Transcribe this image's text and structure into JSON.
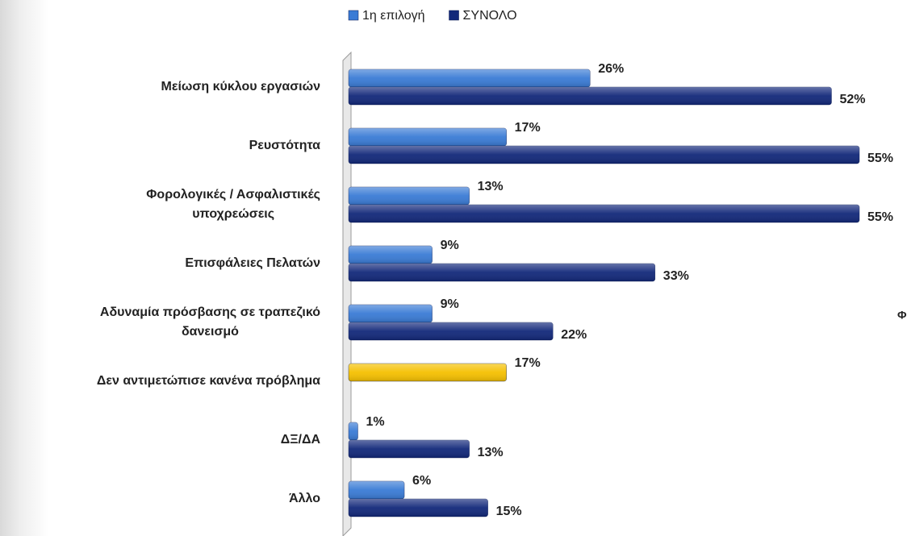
{
  "chart_data": {
    "type": "bar",
    "orientation": "horizontal",
    "categories": [
      "Μείωση κύκλου εργασιών",
      "Ρευστότητα",
      "Φορολογικές / Ασφαλιστικές\nυποχρεώσεις",
      "Επισφάλειες Πελατών",
      "Αδυναμία πρόσβασης σε τραπεζικό\nδανεισμό",
      "Δεν αντιμετώπισε κανένα πρόβλημα",
      "ΔΞ/ΔΑ",
      "Άλλο"
    ],
    "series": [
      {
        "name": "1η επιλογή",
        "color": "#3a7bd5",
        "colors": [
          "#3a7bd5",
          "#3a7bd5",
          "#3a7bd5",
          "#3a7bd5",
          "#3a7bd5",
          "#f5c000",
          "#3a7bd5",
          "#3a7bd5"
        ],
        "values": [
          26,
          17,
          13,
          9,
          9,
          17,
          1,
          6
        ],
        "value_labels": [
          "26%",
          "17%",
          "13%",
          "9%",
          "9%",
          "17%",
          "1%",
          "6%"
        ]
      },
      {
        "name": "ΣΥΝΟΛΟ",
        "color": "#12287a",
        "values": [
          52,
          55,
          55,
          33,
          22,
          null,
          13,
          15
        ],
        "value_labels": [
          "52%",
          "55%",
          "55%",
          "33%",
          "22%",
          null,
          "13%",
          "15%"
        ]
      }
    ],
    "legend": "top",
    "annotations": [
      "Φ"
    ]
  }
}
